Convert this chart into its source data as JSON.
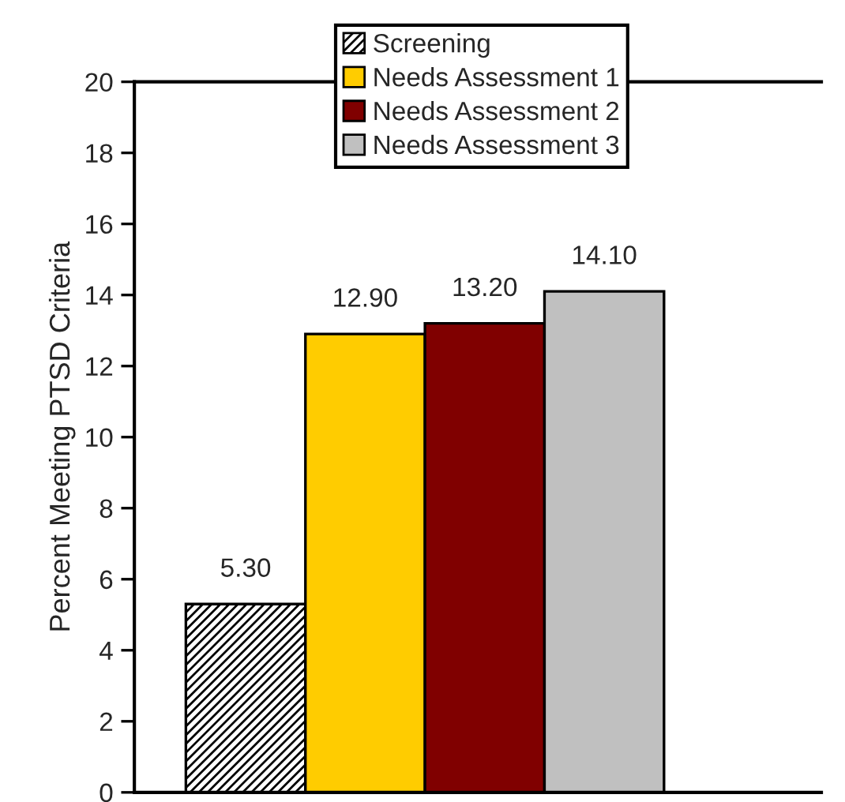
{
  "chart_data": {
    "type": "bar",
    "ylabel": "Percent Meeting PTSD Criteria",
    "categories": [
      null
    ],
    "series": [
      {
        "name": "Screening",
        "color": "#000000",
        "values": [
          5.3
        ],
        "value_labels": [
          "5.30"
        ]
      },
      {
        "name": "Needs Assessment 1",
        "color": "#ffcc00",
        "values": [
          12.9
        ],
        "value_labels": [
          "12.90"
        ]
      },
      {
        "name": "Needs Assessment 2",
        "color": "#800000",
        "values": [
          13.2
        ],
        "value_labels": [
          "13.20"
        ]
      },
      {
        "name": "Needs Assessment 3",
        "color": "#c0c0c0",
        "values": [
          14.1
        ],
        "value_labels": [
          "14.10"
        ]
      }
    ],
    "ylim": [
      0,
      20
    ],
    "yticks": [
      0,
      2,
      4,
      6,
      8,
      10,
      12,
      14,
      16,
      18,
      20
    ],
    "grid": false,
    "legend": "top"
  }
}
